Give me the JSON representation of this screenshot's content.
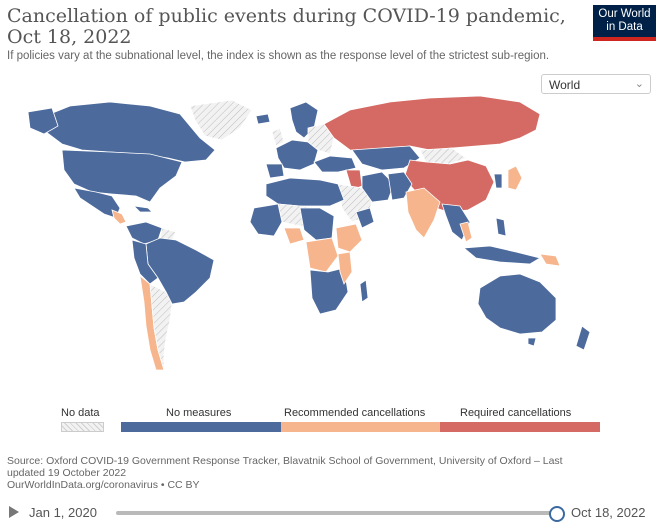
{
  "header": {
    "title": "Cancellation of public events during COVID-19 pandemic, Oct 18, 2022",
    "subtitle": "If policies vary at the subnational level, the index is shown as the response level of the strictest sub-region."
  },
  "logo": {
    "line1": "Our World",
    "line2": "in Data"
  },
  "region_select": {
    "value": "World"
  },
  "legend": {
    "items": [
      {
        "label": "No data",
        "color": "#e6e6e6"
      },
      {
        "label": "No measures",
        "color": "#4c6a9c"
      },
      {
        "label": "Recommended cancellations",
        "color": "#f6b58c"
      },
      {
        "label": "Required cancellations",
        "color": "#d46a63"
      }
    ]
  },
  "colors": {
    "no_measures": "#4c6a9c",
    "recommended": "#f6b58c",
    "required": "#d46a63",
    "no_data": "#e6e6e6",
    "border": "#ffffff"
  },
  "source": {
    "line1": "Source: Oxford COVID-19 Government Response Tracker, Blavatnik School of Government, University of Oxford – Last",
    "line2": "updated 19 October 2022",
    "line3": "OurWorldInData.org/coronavirus • CC BY"
  },
  "timeline": {
    "start": "Jan 1, 2020",
    "end": "Oct 18, 2022",
    "position": 1.0
  }
}
